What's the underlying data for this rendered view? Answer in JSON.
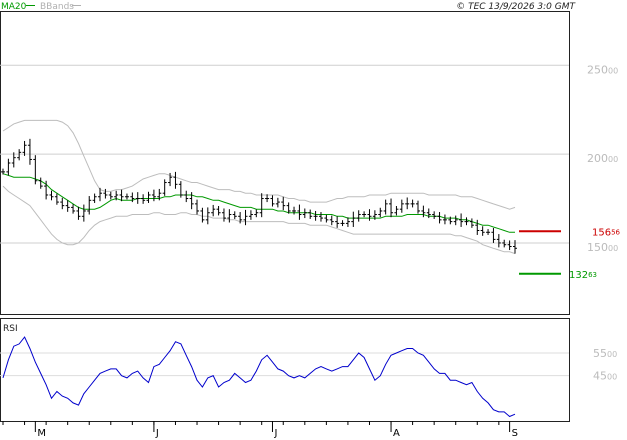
{
  "header": {
    "legend": [
      {
        "label": "MA20",
        "color": "#009900"
      },
      {
        "label": "BBands",
        "color": "#b0b0b0"
      }
    ],
    "copyright": "© TEC 13/9/2026 3:0 GMT"
  },
  "chart_data": [
    {
      "type": "ohlc",
      "title": "",
      "ylim": [
        110,
        280
      ],
      "y_ticks": [
        {
          "big": "250",
          "small": "00",
          "value": 250
        },
        {
          "big": "200",
          "small": "00",
          "value": 200
        },
        {
          "big": "150",
          "small": "00",
          "value": 150
        }
      ],
      "x_labels": [
        {
          "label": "M",
          "index": 6
        },
        {
          "label": "J",
          "index": 28
        },
        {
          "label": "J",
          "index": 50
        },
        {
          "label": "A",
          "index": 72
        },
        {
          "label": "S",
          "index": 94
        }
      ],
      "price_levels": [
        {
          "big": "156",
          "small": "56",
          "value": 156.56,
          "color": "#cc0000"
        },
        {
          "big": "132",
          "small": "63",
          "value": 132.63,
          "color": "#009900"
        }
      ],
      "close": [
        190,
        195,
        198,
        201,
        205,
        197,
        185,
        182,
        177,
        176,
        173,
        171,
        170,
        168,
        165,
        168,
        174,
        176,
        178,
        177,
        176,
        177,
        176,
        176,
        175,
        175,
        174,
        177,
        176,
        178,
        184,
        187,
        183,
        177,
        175,
        172,
        168,
        163,
        167,
        169,
        167,
        164,
        166,
        165,
        163,
        165,
        166,
        167,
        175,
        175,
        172,
        173,
        171,
        168,
        168,
        166,
        167,
        165,
        165,
        164,
        163,
        162,
        161,
        161,
        162,
        164,
        166,
        166,
        165,
        166,
        168,
        172,
        167,
        169,
        172,
        172,
        172,
        168,
        167,
        166,
        165,
        163,
        163,
        162,
        163,
        162,
        162,
        160,
        157,
        156,
        156,
        152,
        150,
        149,
        148,
        147
      ],
      "ma20": [
        189,
        188,
        187,
        187,
        187,
        187,
        186,
        185,
        183,
        180,
        178,
        176,
        174,
        172,
        170,
        169,
        169,
        169,
        170,
        172,
        174,
        175,
        174,
        174,
        174,
        175,
        175,
        175,
        175,
        175,
        176,
        176,
        177,
        177,
        177,
        177,
        176,
        176,
        175,
        174,
        174,
        173,
        172,
        171,
        170,
        170,
        170,
        169,
        169,
        169,
        169,
        168,
        168,
        167,
        167,
        167,
        167,
        167,
        166,
        166,
        166,
        166,
        165,
        165,
        164,
        164,
        164,
        164,
        164,
        164,
        164,
        165,
        165,
        165,
        165,
        166,
        166,
        166,
        166,
        165,
        165,
        165,
        164,
        164,
        164,
        163,
        163,
        162,
        161,
        160,
        160,
        159,
        158,
        157,
        156,
        156
      ],
      "bb_upper": [
        213,
        215,
        217,
        218,
        219,
        219,
        219,
        219,
        219,
        219,
        219,
        218,
        216,
        212,
        206,
        199,
        192,
        185,
        180,
        179,
        179,
        180,
        180,
        181,
        182,
        184,
        186,
        187,
        188,
        189,
        189,
        188,
        187,
        186,
        185,
        184,
        184,
        183,
        182,
        181,
        180,
        180,
        180,
        179,
        179,
        178,
        178,
        177,
        177,
        177,
        177,
        177,
        176,
        175,
        175,
        174,
        174,
        173,
        173,
        173,
        173,
        174,
        175,
        175,
        176,
        176,
        176,
        176,
        177,
        177,
        177,
        177,
        178,
        178,
        178,
        178,
        178,
        178,
        178,
        177,
        177,
        177,
        177,
        177,
        177,
        176,
        176,
        176,
        175,
        174,
        173,
        172,
        171,
        170,
        169,
        170
      ],
      "bb_lower": [
        182,
        179,
        177,
        175,
        173,
        171,
        167,
        163,
        159,
        155,
        152,
        150,
        149,
        149,
        150,
        153,
        157,
        160,
        162,
        163,
        164,
        165,
        165,
        165,
        166,
        166,
        166,
        166,
        167,
        167,
        166,
        166,
        166,
        167,
        167,
        166,
        166,
        165,
        165,
        164,
        164,
        164,
        163,
        163,
        162,
        162,
        162,
        162,
        162,
        162,
        162,
        162,
        162,
        161,
        161,
        161,
        161,
        160,
        160,
        160,
        160,
        159,
        158,
        157,
        156,
        155,
        155,
        155,
        155,
        155,
        155,
        155,
        155,
        155,
        155,
        155,
        155,
        155,
        155,
        155,
        155,
        155,
        155,
        155,
        154,
        154,
        153,
        152,
        151,
        149,
        148,
        147,
        146,
        145,
        145,
        144
      ]
    },
    {
      "type": "line",
      "title": "RSI",
      "ylim": [
        25,
        70
      ],
      "y_ticks": [
        {
          "big": "55",
          "small": "00",
          "value": 55
        },
        {
          "big": "45",
          "small": "00",
          "value": 45
        }
      ],
      "series": [
        {
          "name": "RSI",
          "color": "#0000cc",
          "values": [
            44,
            52,
            58,
            59,
            62,
            57,
            51,
            46,
            41,
            35,
            38,
            36,
            35,
            33,
            32,
            37,
            40,
            43,
            46,
            47,
            48,
            48,
            45,
            44,
            46,
            47,
            44,
            42,
            49,
            50,
            53,
            56,
            60,
            59,
            54,
            49,
            43,
            40,
            44,
            45,
            40,
            42,
            43,
            46,
            44,
            42,
            43,
            47,
            52,
            54,
            51,
            48,
            47,
            45,
            44,
            45,
            44,
            46,
            48,
            49,
            48,
            47,
            48,
            49,
            49,
            52,
            55,
            53,
            48,
            43,
            45,
            50,
            54,
            55,
            56,
            57,
            57,
            55,
            54,
            51,
            48,
            46,
            46,
            43,
            43,
            42,
            41,
            42,
            38,
            35,
            33,
            30,
            29,
            29,
            27,
            28
          ]
        }
      ]
    }
  ]
}
